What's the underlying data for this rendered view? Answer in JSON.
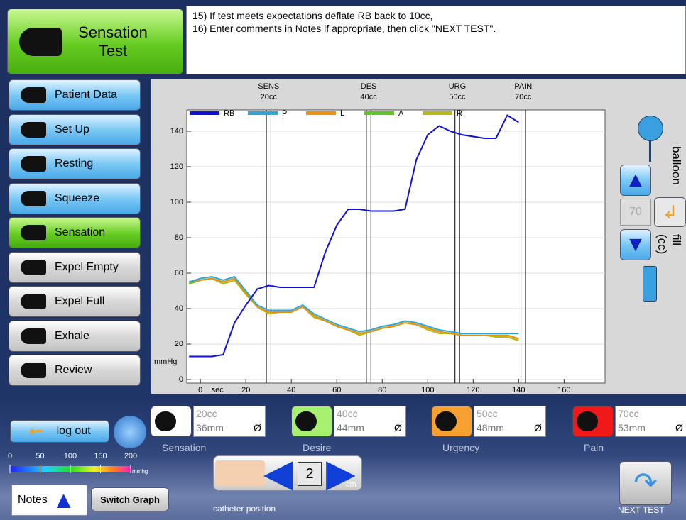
{
  "header": {
    "title": "Sensation Test"
  },
  "instructions": [
    "15) If test meets expectations deflate RB back to 10cc,",
    "16) Enter comments in Notes if appropriate, then click \"NEXT TEST\"."
  ],
  "nav": [
    "Patient Data",
    "Set Up",
    "Resting",
    "Squeeze",
    "Sensation",
    "Expel Empty",
    "Expel Full",
    "Exhale",
    "Review"
  ],
  "nav_active": 4,
  "chart_data": {
    "type": "line",
    "x_label": "sec",
    "y_label": "mmHg",
    "x": [
      -5,
      0,
      5,
      10,
      15,
      20,
      25,
      30,
      35,
      40,
      45,
      50,
      55,
      60,
      65,
      70,
      75,
      80,
      85,
      90,
      95,
      100,
      105,
      110,
      115,
      120,
      125,
      130,
      135,
      140
    ],
    "series": [
      {
        "name": "RB",
        "color": "#1010d8",
        "values": [
          13,
          13,
          13,
          14,
          32,
          42,
          51,
          53,
          52,
          52,
          52,
          52,
          72,
          87,
          96,
          96,
          95,
          95,
          95,
          96,
          124,
          138,
          143,
          140,
          138,
          137,
          136,
          136,
          149,
          145
        ]
      },
      {
        "name": "P",
        "color": "#29a8e0",
        "values": [
          55,
          57,
          58,
          56,
          58,
          50,
          42,
          39,
          39,
          39,
          42,
          37,
          34,
          31,
          29,
          27,
          28,
          30,
          31,
          33,
          32,
          30,
          28,
          27,
          26,
          26,
          26,
          26,
          26,
          26
        ]
      },
      {
        "name": "L",
        "color": "#f0900a",
        "values": [
          55,
          56,
          57,
          55,
          57,
          49,
          41,
          38,
          38,
          38,
          41,
          36,
          33,
          30,
          28,
          26,
          27,
          29,
          30,
          32,
          31,
          29,
          27,
          26,
          25,
          25,
          25,
          25,
          25,
          23
        ]
      },
      {
        "name": "A",
        "color": "#5cc81e",
        "values": [
          54,
          56,
          57,
          55,
          57,
          49,
          41,
          38,
          38,
          38,
          41,
          36,
          33,
          30,
          28,
          26,
          27,
          29,
          30,
          32,
          31,
          29,
          27,
          26,
          25,
          25,
          25,
          25,
          25,
          23
        ]
      },
      {
        "name": "R",
        "color": "#b8b814",
        "values": [
          54,
          56,
          57,
          54,
          56,
          48,
          41,
          37,
          38,
          38,
          41,
          35,
          33,
          30,
          28,
          25,
          27,
          29,
          30,
          32,
          31,
          28,
          26,
          26,
          25,
          25,
          25,
          24,
          24,
          22
        ]
      }
    ],
    "markers": [
      {
        "name": "SENS",
        "volume": "20cc",
        "x": [
          29,
          31
        ]
      },
      {
        "name": "DES",
        "volume": "40cc",
        "x": [
          73,
          75
        ]
      },
      {
        "name": "URG",
        "volume": "50cc",
        "x": [
          112,
          114
        ]
      },
      {
        "name": "PAIN",
        "volume": "70cc",
        "x": [
          141,
          143
        ]
      }
    ],
    "xlim": [
      -6,
      178
    ],
    "ylim": [
      -2,
      152
    ],
    "xticks": [
      0,
      20,
      40,
      60,
      80,
      100,
      120,
      140,
      160
    ],
    "yticks": [
      0,
      20,
      40,
      60,
      80,
      100,
      120,
      140
    ],
    "grid": true
  },
  "balloon": {
    "label_top": "balloon",
    "label_bottom": "fill (cc)",
    "value": 70
  },
  "events": [
    {
      "name": "Sensation",
      "volume": "20cc",
      "depth": "36mm",
      "color": "#ffffff"
    },
    {
      "name": "Desire",
      "volume": "40cc",
      "depth": "44mm",
      "color": "#a8f070"
    },
    {
      "name": "Urgency",
      "volume": "50cc",
      "depth": "48mm",
      "color": "#f8a030"
    },
    {
      "name": "Pain",
      "volume": "70cc",
      "depth": "53mm",
      "color": "#f01818"
    }
  ],
  "clear_symbol": "Ø",
  "logout": "log out",
  "scale": {
    "ticks": [
      0,
      50,
      100,
      150,
      200
    ],
    "unit": "mmhg"
  },
  "notes": "Notes",
  "switch_graph": "Switch Graph",
  "catheter": {
    "value": 2,
    "unit": "cm",
    "label": "catheter position"
  },
  "next": "NEXT TEST"
}
